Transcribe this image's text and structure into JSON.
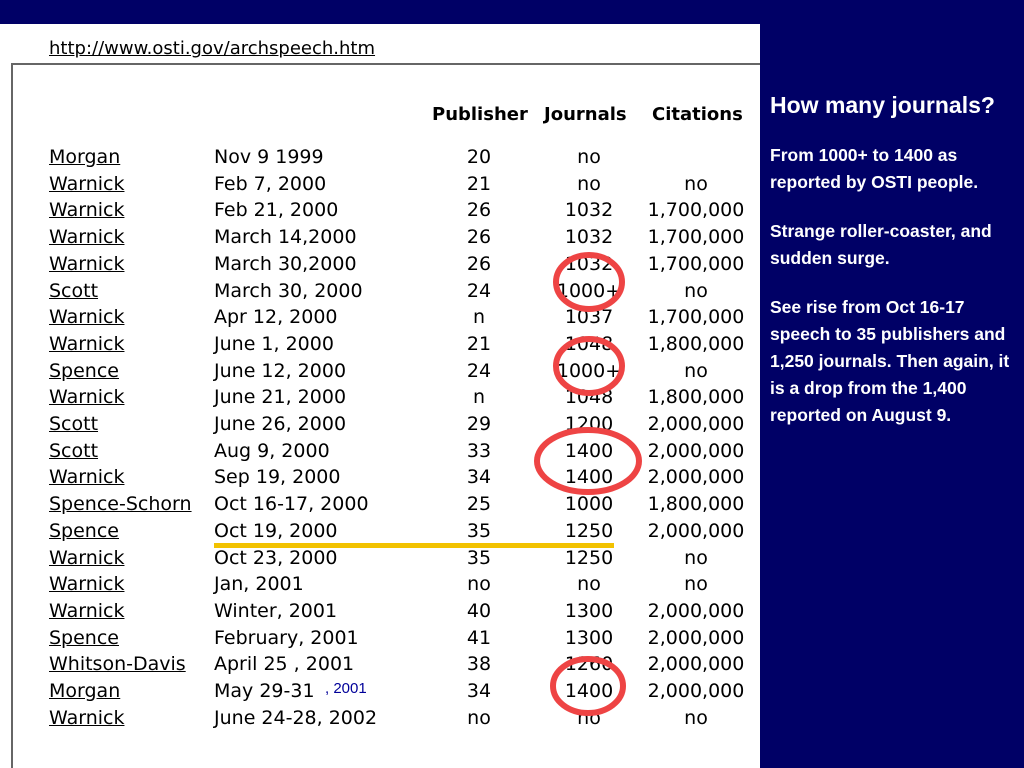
{
  "url": "http://www.osti.gov/archspeech.htm",
  "headers": {
    "publisher": "Publisher",
    "journals": "Journals",
    "citations": "Citations"
  },
  "rows": [
    {
      "name": "Morgan",
      "date": "Nov 9 1999",
      "publisher": "20",
      "journals": "no",
      "citations": ""
    },
    {
      "name": "Warnick",
      "date": "Feb 7, 2000",
      "publisher": "21",
      "journals": "no",
      "citations": "no"
    },
    {
      "name": "Warnick",
      "date": "Feb 21, 2000",
      "publisher": "26",
      "journals": "1032",
      "citations": "1,700,000"
    },
    {
      "name": "Warnick",
      "date": "March 14,2000",
      "publisher": "26",
      "journals": "1032",
      "citations": "1,700,000"
    },
    {
      "name": "Warnick",
      "date": "March 30,2000",
      "publisher": "26",
      "journals": "1032",
      "citations": "1,700,000"
    },
    {
      "name": "Scott",
      "date": "March 30, 2000",
      "publisher": "24",
      "journals": "1000+",
      "citations": "no"
    },
    {
      "name": "Warnick",
      "date": "Apr 12, 2000",
      "publisher": "n",
      "journals": "1037",
      "citations": "1,700,000"
    },
    {
      "name": "Warnick",
      "date": "June 1, 2000",
      "publisher": "21",
      "journals": "1048",
      "citations": "1,800,000"
    },
    {
      "name": "Spence",
      "date": "June 12, 2000",
      "publisher": "24",
      "journals": "1000+",
      "citations": "no"
    },
    {
      "name": "Warnick",
      "date": "June 21, 2000",
      "publisher": "n",
      "journals": "1048",
      "citations": "1,800,000"
    },
    {
      "name": "Scott",
      "date": "June 26, 2000",
      "publisher": "29",
      "journals": "1200",
      "citations": "2,000,000"
    },
    {
      "name": "Scott",
      "date": "Aug 9, 2000",
      "publisher": "33",
      "journals": "1400",
      "citations": "2,000,000"
    },
    {
      "name": "Warnick",
      "date": "Sep 19, 2000",
      "publisher": "34",
      "journals": "1400",
      "citations": "2,000,000"
    },
    {
      "name": "Spence-Schorn",
      "date": "Oct 16-17, 2000",
      "publisher": "25",
      "journals": "1000",
      "citations": "1,800,000"
    },
    {
      "name": "Spence",
      "date": "Oct 19, 2000",
      "publisher": "35",
      "journals": "1250",
      "citations": "2,000,000"
    },
    {
      "name": "Warnick",
      "date": "Oct 23, 2000",
      "publisher": "35",
      "journals": "1250",
      "citations": "no"
    },
    {
      "name": "Warnick",
      "date": "Jan, 2001",
      "publisher": "no",
      "journals": "no",
      "citations": "no"
    },
    {
      "name": "Warnick",
      "date": "Winter, 2001",
      "publisher": "40",
      "journals": "1300",
      "citations": "2,000,000"
    },
    {
      "name": "Spence",
      "date": "February, 2001",
      "publisher": "41",
      "journals": "1300",
      "citations": "2,000,000"
    },
    {
      "name": "Whitson-Davis",
      "date": "April 25 , 2001",
      "publisher": "38",
      "journals": "1260",
      "citations": "2,000,000"
    },
    {
      "name": "Morgan",
      "date": "May 29-31",
      "publisher": "34",
      "journals": "1400",
      "citations": "2,000,000"
    },
    {
      "name": "Warnick",
      "date": "June 24-28, 2002",
      "publisher": "no",
      "journals": "no",
      "citations": "no"
    }
  ],
  "year_note": ", 2001",
  "colors": {
    "background": "#000066",
    "circle": "#ee4444",
    "highlight_line": "#f2c200"
  },
  "notes": {
    "title": "How many journals?",
    "p1": "From 1000+ to 1400 as reported by OSTI people.",
    "p2": "Strange roller-coaster, and sudden surge.",
    "p3": "See rise from Oct 16-17 speech to 35 publishers and 1,250 journals. Then again, it is a drop from the 1,400 reported on August 9."
  }
}
